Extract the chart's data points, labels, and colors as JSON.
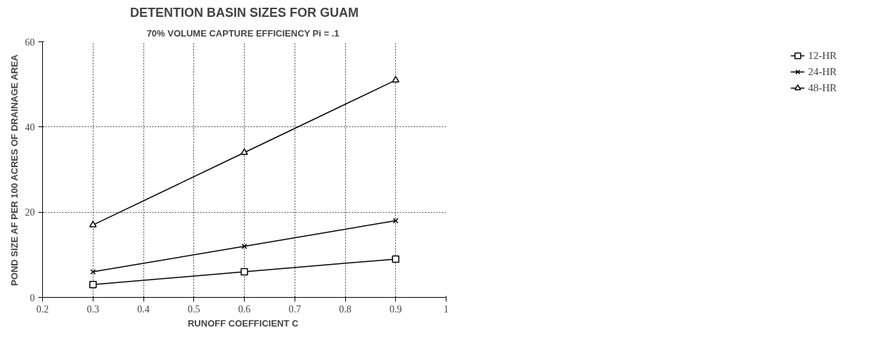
{
  "chart_data": {
    "type": "line",
    "title": "DETENTION BASIN SIZES FOR GUAM",
    "subtitle": "70% VOLUME CAPTURE EFFICIENCY  Pi = .1",
    "xlabel": "RUNOFF COEFFICIENT  C",
    "ylabel": "POND SIZE AF PER 100 ACRES OF DRAINAGE AREA",
    "x": [
      0.3,
      0.6,
      0.9
    ],
    "series": [
      {
        "name": "12-HR",
        "color": "#000000",
        "values": [
          3,
          6,
          9
        ],
        "marker": "square"
      },
      {
        "name": "24-HR",
        "color": "#000000",
        "values": [
          6,
          12,
          18
        ],
        "marker": "cross"
      },
      {
        "name": "48-HR",
        "color": "#000000",
        "values": [
          17,
          34,
          51
        ],
        "marker": "triangle"
      }
    ],
    "xlim": [
      0.2,
      1
    ],
    "xticks": [
      0.2,
      0.3,
      0.4,
      0.5,
      0.6,
      0.7,
      0.8,
      0.9,
      {
        "value": 1,
        "label": "1"
      }
    ],
    "ylim": [
      0,
      60
    ],
    "yticks": [
      0,
      20,
      40,
      60
    ],
    "grid": true,
    "legend": "right"
  }
}
